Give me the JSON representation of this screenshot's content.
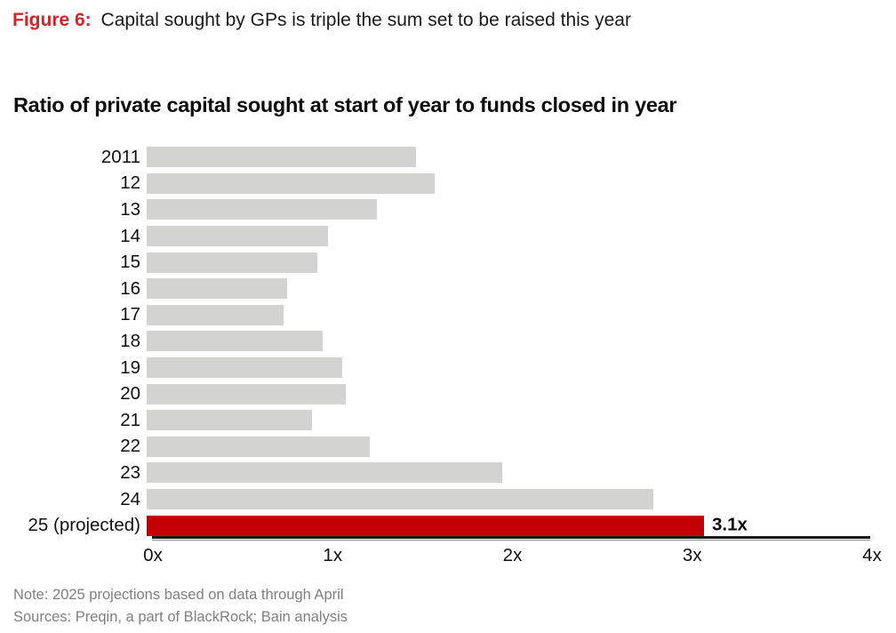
{
  "figure": {
    "label": "Figure 6:",
    "caption": "Capital sought by GPs is triple the sum set to be raised this year"
  },
  "notes": [
    "Note: 2025 projections based on data through April",
    "Sources: Preqin, a part of BlackRock; Bain analysis"
  ],
  "colors": {
    "figure_label": "#d2232a",
    "bar": "#d3d3d1",
    "highlight": "#c40000",
    "note_text": "#7f7f7f",
    "axis": "#1a1a1a"
  },
  "chart_data": {
    "type": "bar",
    "orientation": "horizontal",
    "title": "Ratio of private capital sought at start of year to funds closed in year",
    "xlabel": "",
    "ylabel": "",
    "grid": false,
    "legend": "none",
    "categories": [
      "2011",
      "12",
      "13",
      "14",
      "15",
      "16",
      "17",
      "18",
      "19",
      "20",
      "21",
      "22",
      "23",
      "24",
      "25 (projected)"
    ],
    "values": [
      1.5,
      1.6,
      1.28,
      1.01,
      0.95,
      0.78,
      0.76,
      0.98,
      1.09,
      1.11,
      0.92,
      1.24,
      1.98,
      2.82,
      3.1
    ],
    "highlight_index": 14,
    "data_label": {
      "index": 14,
      "text": "3.1x"
    },
    "x_ticks": [
      "0x",
      "1x",
      "2x",
      "3x",
      "4x"
    ],
    "xlim": [
      0,
      4
    ]
  }
}
